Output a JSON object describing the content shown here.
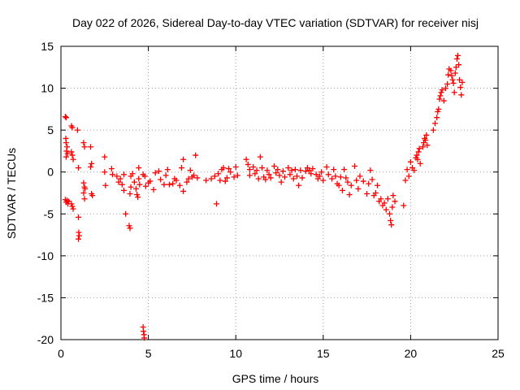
{
  "chart_data": {
    "type": "scatter",
    "title": "Day 022 of 2026, Sidereal Day-to-day VTEC variation (SDTVAR) for receiver nisj",
    "xlabel": "GPS time / hours",
    "ylabel": "SDTVAR / TECUs",
    "xlim": [
      0,
      25
    ],
    "ylim": [
      -20,
      15
    ],
    "xticks": [
      0,
      5,
      10,
      15,
      20,
      25
    ],
    "yticks": [
      -20,
      -15,
      -10,
      -5,
      0,
      5,
      10,
      15
    ],
    "xtick_labels": [
      "0",
      "5",
      "10",
      "15",
      "20",
      "25"
    ],
    "ytick_labels": [
      "-20",
      "-15",
      "-10",
      "-5",
      "0",
      "5",
      "10",
      "15"
    ],
    "grid": true,
    "marker": "plus",
    "series": [
      {
        "name": "SDTVAR",
        "color": "#ff0000",
        "points": [
          [
            0.25,
            6.6
          ],
          [
            0.3,
            6.5
          ],
          [
            0.28,
            4.0
          ],
          [
            0.3,
            3.5
          ],
          [
            0.35,
            3.0
          ],
          [
            0.32,
            2.5
          ],
          [
            0.38,
            2.2
          ],
          [
            0.3,
            1.8
          ],
          [
            0.25,
            -3.3
          ],
          [
            0.3,
            -3.6
          ],
          [
            0.35,
            -3.4
          ],
          [
            0.4,
            -3.8
          ],
          [
            0.45,
            -3.5
          ],
          [
            0.6,
            5.5
          ],
          [
            0.65,
            5.3
          ],
          [
            0.6,
            2.4
          ],
          [
            0.65,
            2.0
          ],
          [
            0.7,
            1.5
          ],
          [
            0.6,
            -3.8
          ],
          [
            0.65,
            -4.1
          ],
          [
            0.7,
            -4.4
          ],
          [
            0.95,
            5.0
          ],
          [
            1.0,
            0.5
          ],
          [
            1.0,
            -5.4
          ],
          [
            1.02,
            -7.2
          ],
          [
            1.05,
            -7.6
          ],
          [
            1.0,
            -8.0
          ],
          [
            1.3,
            3.5
          ],
          [
            1.35,
            3.0
          ],
          [
            1.3,
            -1.3
          ],
          [
            1.35,
            -1.8
          ],
          [
            1.3,
            -2.5
          ],
          [
            1.35,
            -3.2
          ],
          [
            1.38,
            -2.0
          ],
          [
            1.7,
            3.0
          ],
          [
            1.75,
            1.0
          ],
          [
            1.7,
            0.6
          ],
          [
            1.75,
            -2.6
          ],
          [
            1.8,
            -2.8
          ],
          [
            2.5,
            1.8
          ],
          [
            2.55,
            -1.6
          ],
          [
            2.5,
            0.0
          ],
          [
            2.9,
            0.4
          ],
          [
            2.95,
            -0.3
          ],
          [
            3.2,
            -0.5
          ],
          [
            3.3,
            -1.2
          ],
          [
            3.4,
            -0.8
          ],
          [
            3.5,
            -1.5
          ],
          [
            3.6,
            -2.2
          ],
          [
            3.6,
            -0.3
          ],
          [
            3.7,
            -5.0
          ],
          [
            3.9,
            -6.4
          ],
          [
            3.95,
            -6.7
          ],
          [
            3.95,
            -2.6
          ],
          [
            4.0,
            -1.8
          ],
          [
            4.0,
            -0.5
          ],
          [
            4.1,
            -0.2
          ],
          [
            4.2,
            -1.2
          ],
          [
            4.3,
            -2.0
          ],
          [
            4.35,
            -2.7
          ],
          [
            4.4,
            -3.0
          ],
          [
            4.45,
            0.5
          ],
          [
            4.5,
            -1.5
          ],
          [
            4.45,
            -0.8
          ],
          [
            4.7,
            -18.5
          ],
          [
            4.72,
            -19.0
          ],
          [
            4.75,
            -19.4
          ],
          [
            4.77,
            -19.8
          ],
          [
            4.7,
            -0.3
          ],
          [
            4.8,
            -0.5
          ],
          [
            4.85,
            -1.7
          ],
          [
            5.0,
            -1.3
          ],
          [
            5.1,
            -1.1
          ],
          [
            5.3,
            -2.1
          ],
          [
            5.4,
            -0.1
          ],
          [
            5.6,
            0.1
          ],
          [
            5.7,
            -0.9
          ],
          [
            5.9,
            -1.5
          ],
          [
            6.0,
            -0.4
          ],
          [
            6.1,
            0.3
          ],
          [
            6.2,
            -1.5
          ],
          [
            6.4,
            -1.4
          ],
          [
            6.5,
            -0.8
          ],
          [
            6.6,
            -1.0
          ],
          [
            6.8,
            -1.6
          ],
          [
            6.9,
            0.5
          ],
          [
            7.0,
            1.5
          ],
          [
            7.0,
            -2.3
          ],
          [
            7.2,
            -1.2
          ],
          [
            7.3,
            -0.8
          ],
          [
            7.4,
            0.2
          ],
          [
            7.5,
            -0.6
          ],
          [
            7.6,
            -0.4
          ],
          [
            7.7,
            2.0
          ],
          [
            7.8,
            -0.7
          ],
          [
            8.3,
            -1.0
          ],
          [
            8.6,
            -0.8
          ],
          [
            8.8,
            -0.5
          ],
          [
            8.9,
            -3.8
          ],
          [
            9.0,
            -0.2
          ],
          [
            9.1,
            -1.0
          ],
          [
            9.2,
            0.3
          ],
          [
            9.3,
            0.5
          ],
          [
            9.4,
            -1.1
          ],
          [
            9.5,
            -0.7
          ],
          [
            9.6,
            0.4
          ],
          [
            9.7,
            0.0
          ],
          [
            9.9,
            -0.6
          ],
          [
            10.0,
            0.6
          ],
          [
            10.1,
            -0.4
          ],
          [
            10.6,
            1.5
          ],
          [
            10.7,
            0.9
          ],
          [
            10.8,
            0.3
          ],
          [
            10.8,
            -0.4
          ],
          [
            11.0,
            0.6
          ],
          [
            11.1,
            -0.2
          ],
          [
            11.2,
            0.2
          ],
          [
            11.3,
            -0.8
          ],
          [
            11.4,
            1.8
          ],
          [
            11.5,
            0.5
          ],
          [
            11.6,
            -0.6
          ],
          [
            11.7,
            -0.9
          ],
          [
            11.8,
            0.2
          ],
          [
            11.9,
            -0.3
          ],
          [
            12.0,
            -0.7
          ],
          [
            12.2,
            0.7
          ],
          [
            12.3,
            -0.1
          ],
          [
            12.4,
            0.3
          ],
          [
            12.5,
            -0.4
          ],
          [
            12.6,
            -1.2
          ],
          [
            12.7,
            0.1
          ],
          [
            12.8,
            -0.6
          ],
          [
            13.0,
            0.5
          ],
          [
            13.1,
            -0.3
          ],
          [
            13.2,
            0.2
          ],
          [
            13.3,
            -0.8
          ],
          [
            13.4,
            0.3
          ],
          [
            13.5,
            -0.5
          ],
          [
            13.6,
            -1.6
          ],
          [
            13.7,
            0.2
          ],
          [
            13.8,
            -0.7
          ],
          [
            14.0,
            0.1
          ],
          [
            14.1,
            0.5
          ],
          [
            14.2,
            0.2
          ],
          [
            14.3,
            -0.2
          ],
          [
            14.4,
            0.4
          ],
          [
            14.6,
            -0.3
          ],
          [
            14.7,
            -0.8
          ],
          [
            14.8,
            -0.5
          ],
          [
            14.9,
            0.0
          ],
          [
            15.0,
            -1.0
          ],
          [
            15.2,
            0.6
          ],
          [
            15.3,
            -0.3
          ],
          [
            15.5,
            -0.8
          ],
          [
            15.6,
            0.3
          ],
          [
            15.7,
            -0.5
          ],
          [
            15.8,
            -1.4
          ],
          [
            15.9,
            -1.6
          ],
          [
            16.0,
            -0.6
          ],
          [
            16.1,
            -2.2
          ],
          [
            16.2,
            0.3
          ],
          [
            16.3,
            -0.7
          ],
          [
            16.4,
            -1.2
          ],
          [
            16.5,
            -2.7
          ],
          [
            16.6,
            -1.6
          ],
          [
            16.8,
            0.7
          ],
          [
            16.9,
            -1.0
          ],
          [
            17.0,
            -2.0
          ],
          [
            17.1,
            -0.5
          ],
          [
            17.3,
            -1.1
          ],
          [
            17.5,
            -2.6
          ],
          [
            17.6,
            -1.4
          ],
          [
            17.7,
            0.2
          ],
          [
            17.8,
            -0.9
          ],
          [
            17.9,
            -2.8
          ],
          [
            18.0,
            -2.5
          ],
          [
            18.1,
            -1.6
          ],
          [
            18.2,
            -3.5
          ],
          [
            18.3,
            -3.2
          ],
          [
            18.4,
            -4.0
          ],
          [
            18.5,
            -3.7
          ],
          [
            18.6,
            -4.5
          ],
          [
            18.7,
            -3.2
          ],
          [
            18.8,
            -5.0
          ],
          [
            18.85,
            -5.8
          ],
          [
            18.9,
            -6.3
          ],
          [
            18.95,
            -4.2
          ],
          [
            19.0,
            -2.8
          ],
          [
            19.1,
            -3.5
          ],
          [
            19.6,
            -4.0
          ],
          [
            19.7,
            -1.0
          ],
          [
            19.8,
            0.3
          ],
          [
            19.9,
            -0.5
          ],
          [
            20.0,
            1.2
          ],
          [
            20.1,
            0.5
          ],
          [
            20.2,
            0.2
          ],
          [
            20.3,
            1.7
          ],
          [
            20.35,
            2.0
          ],
          [
            20.4,
            1.5
          ],
          [
            20.45,
            2.4
          ],
          [
            20.5,
            2.8
          ],
          [
            20.55,
            1.0
          ],
          [
            20.7,
            3.0
          ],
          [
            20.75,
            3.5
          ],
          [
            20.8,
            4.0
          ],
          [
            20.85,
            3.8
          ],
          [
            20.9,
            4.4
          ],
          [
            20.95,
            3.2
          ],
          [
            21.3,
            5.0
          ],
          [
            21.4,
            5.8
          ],
          [
            21.5,
            6.5
          ],
          [
            21.55,
            7.2
          ],
          [
            21.6,
            7.5
          ],
          [
            21.65,
            8.7
          ],
          [
            21.7,
            9.1
          ],
          [
            21.75,
            9.5
          ],
          [
            21.8,
            9.8
          ],
          [
            21.9,
            8.5
          ],
          [
            22.0,
            10.0
          ],
          [
            22.1,
            10.5
          ],
          [
            22.15,
            11.6
          ],
          [
            22.2,
            12.3
          ],
          [
            22.3,
            12.1
          ],
          [
            22.35,
            11.5
          ],
          [
            22.4,
            11.0
          ],
          [
            22.45,
            10.6
          ],
          [
            22.5,
            9.5
          ],
          [
            22.55,
            11.8
          ],
          [
            22.6,
            12.5
          ],
          [
            22.65,
            13.5
          ],
          [
            22.7,
            13.9
          ],
          [
            22.75,
            12.8
          ],
          [
            22.8,
            11.0
          ],
          [
            22.85,
            10.1
          ],
          [
            22.9,
            9.2
          ],
          [
            22.95,
            10.7
          ]
        ]
      }
    ]
  }
}
